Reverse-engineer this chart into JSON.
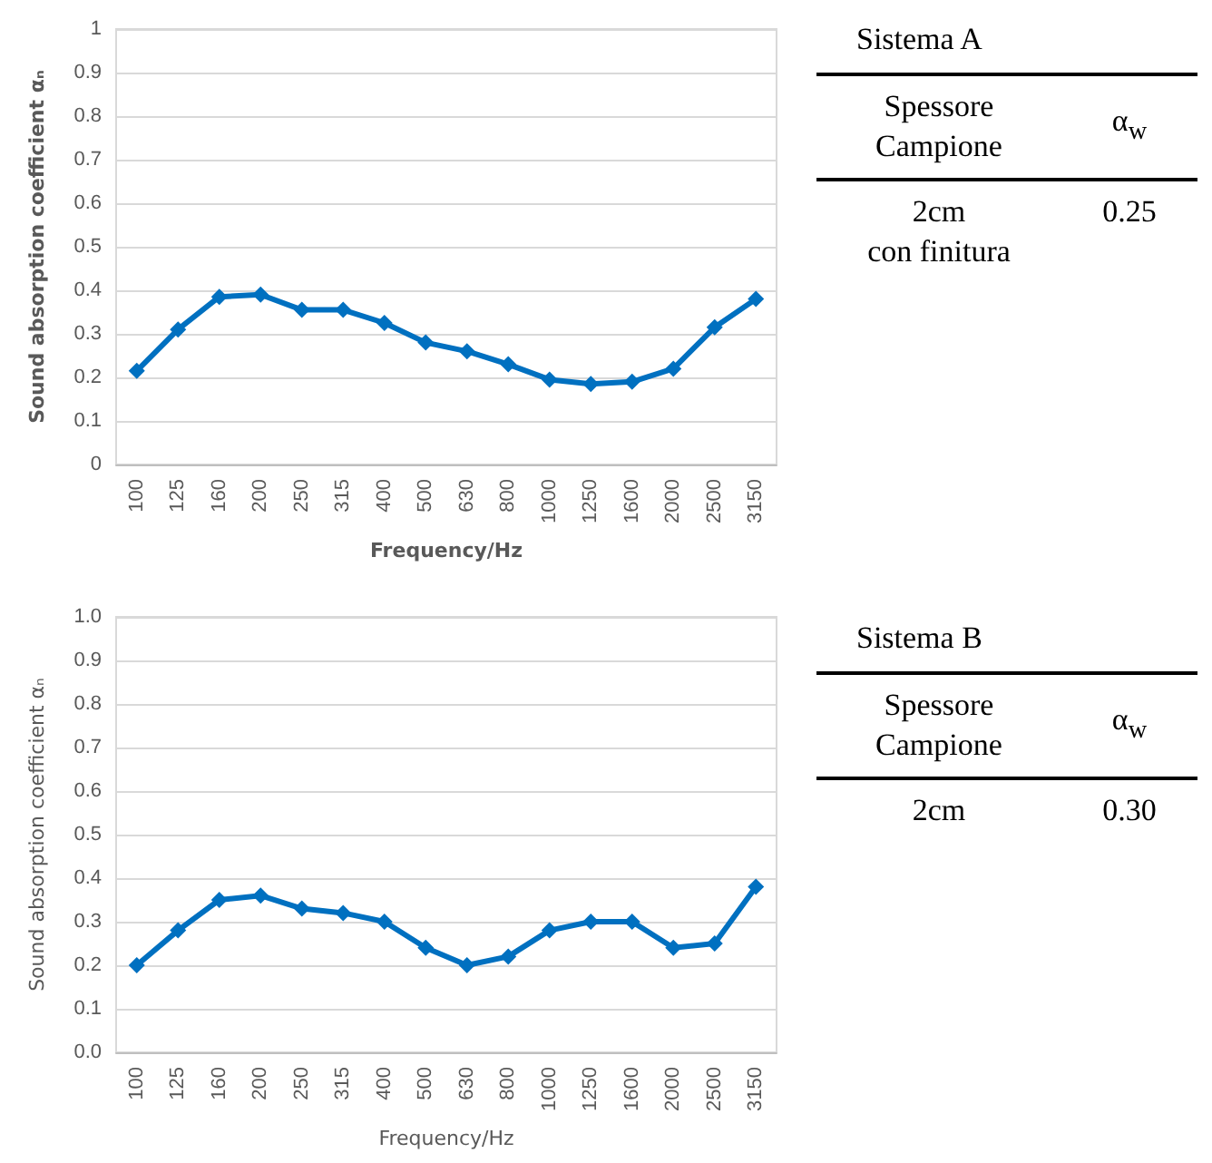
{
  "chart_data": [
    {
      "type": "line",
      "xlabel": "Frequency/Hz",
      "ylabel": "Sound absorption coefficient αₙ",
      "categories": [
        "100",
        "125",
        "160",
        "200",
        "250",
        "315",
        "400",
        "500",
        "630",
        "800",
        "1000",
        "1250",
        "1600",
        "2000",
        "2500",
        "3150"
      ],
      "series": [
        {
          "color": "#0070c0",
          "values": [
            0.215,
            0.31,
            0.385,
            0.39,
            0.355,
            0.355,
            0.325,
            0.28,
            0.26,
            0.23,
            0.195,
            0.185,
            0.19,
            0.22,
            0.315,
            0.38
          ]
        }
      ],
      "ylim": [
        0,
        1
      ],
      "yticks": [
        0,
        0.1,
        0.2,
        0.3,
        0.4,
        0.5,
        0.6,
        0.7,
        0.8,
        0.9,
        1
      ],
      "grid": "y",
      "marker": "diamond",
      "line_style": "solid"
    },
    {
      "type": "other",
      "title": "Sistema A",
      "annotations": [
        "Spessore\nCampione",
        "α$_{w}$",
        "2cm\ncon finitura",
        "0.25"
      ]
    },
    {
      "type": "line",
      "xlabel": "Frequency/Hz",
      "ylabel": "Sound absorption coefficient αₙ",
      "categories": [
        "100",
        "125",
        "160",
        "200",
        "250",
        "315",
        "400",
        "500",
        "630",
        "800",
        "1000",
        "1250",
        "1600",
        "2000",
        "2500",
        "3150"
      ],
      "series": [
        {
          "color": "#0070c0",
          "values": [
            0.2,
            0.28,
            0.35,
            0.36,
            0.33,
            0.32,
            0.3,
            0.24,
            0.2,
            0.22,
            0.28,
            0.3,
            0.3,
            0.24,
            0.25,
            0.38
          ]
        }
      ],
      "ylim": [
        0,
        1
      ],
      "yticks": [
        {
          "value": 0,
          "label": "0.0"
        },
        {
          "value": 0.1,
          "label": "0.1"
        },
        {
          "value": 0.2,
          "label": "0.2"
        },
        {
          "value": 0.3,
          "label": "0.3"
        },
        {
          "value": 0.4,
          "label": "0.4"
        },
        {
          "value": 0.5,
          "label": "0.5"
        },
        {
          "value": 0.6,
          "label": "0.6"
        },
        {
          "value": 0.7,
          "label": "0.7"
        },
        {
          "value": 0.8,
          "label": "0.8"
        },
        {
          "value": 0.9,
          "label": "0.9"
        },
        {
          "value": 1,
          "label": "1.0"
        }
      ],
      "grid": "y",
      "marker": "diamond",
      "line_style": "solid"
    },
    {
      "type": "other",
      "title": "Sistema B",
      "annotations": [
        "Spessore\nCampione",
        "α$_{w}$",
        "2cm",
        "0.30"
      ]
    }
  ]
}
